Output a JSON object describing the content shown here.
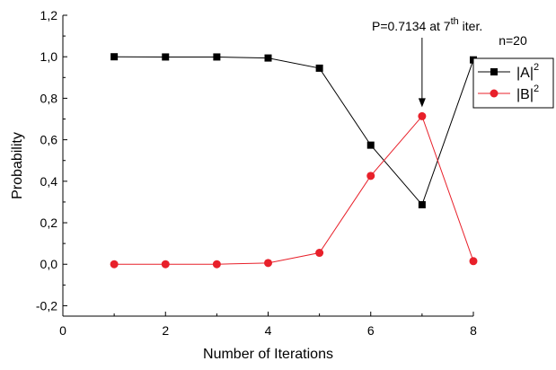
{
  "chart_data": {
    "type": "line",
    "xlabel": "Number of Iterations",
    "ylabel": "Probability",
    "xlim": [
      0,
      8
    ],
    "ylim": [
      -0.25,
      1.2
    ],
    "x_ticks": [
      {
        "value": 0,
        "label": "0"
      },
      {
        "value": 2,
        "label": "2"
      },
      {
        "value": 4,
        "label": "4"
      },
      {
        "value": 6,
        "label": "6"
      },
      {
        "value": 8,
        "label": "8"
      }
    ],
    "y_ticks": [
      {
        "value": -0.2,
        "label": "-0,2"
      },
      {
        "value": 0.0,
        "label": "0,0"
      },
      {
        "value": 0.2,
        "label": "0,2"
      },
      {
        "value": 0.4,
        "label": "0,4"
      },
      {
        "value": 0.6,
        "label": "0,6"
      },
      {
        "value": 0.8,
        "label": "0,8"
      },
      {
        "value": 1.0,
        "label": "1,0"
      },
      {
        "value": 1.2,
        "label": "1,2"
      }
    ],
    "grid": false,
    "legend_position": "right",
    "x": [
      1,
      2,
      3,
      4,
      5,
      6,
      7,
      8
    ],
    "series": [
      {
        "name": "|A|",
        "name_sup": "2",
        "color": "#000000",
        "marker": "square",
        "values": [
          1.0,
          0.999,
          0.999,
          0.994,
          0.945,
          0.574,
          0.287,
          0.985
        ]
      },
      {
        "name": "|B|",
        "name_sup": "2",
        "color": "#e8202a",
        "marker": "circle",
        "values": [
          0.0,
          0.0,
          0.0,
          0.006,
          0.055,
          0.426,
          0.7134,
          0.015
        ]
      }
    ],
    "annotations": {
      "arrow_label_prefix": "P=0.7134 at 7",
      "arrow_label_sup": "th",
      "arrow_label_suffix": " iter.",
      "arrow_target_x": 7,
      "n_label": "n=20"
    }
  }
}
